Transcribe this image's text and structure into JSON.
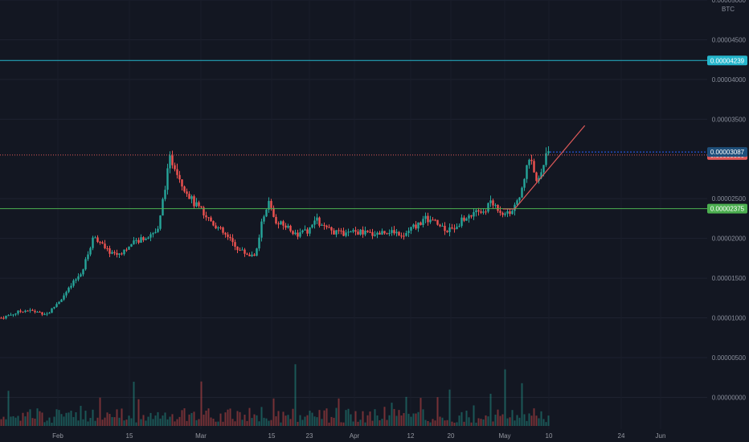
{
  "chart_data": {
    "type": "candlestick",
    "currency": "BTC",
    "ylim": [
      -4e-07,
      5e-06
    ],
    "y_ticks": [
      "0.00005000",
      "0.00004500",
      "0.00004000",
      "0.00003500",
      "0.00002500",
      "0.00002000",
      "0.00001500",
      "0.00001000",
      "0.00000500",
      "0.00000000"
    ],
    "x_ticks": [
      "Feb",
      "15",
      "Mar",
      "15",
      "23",
      "Apr",
      "12",
      "20",
      "May",
      "10",
      "24",
      "Jun"
    ],
    "last_price": {
      "label": "0.00003087",
      "value": 3.087e-06,
      "color": "#1e4f7a"
    },
    "horizontal_lines": [
      {
        "label": "0.00004239",
        "value": 4.239e-06,
        "color": "#26b6cc",
        "style": "solid"
      },
      {
        "label": "0.00003050",
        "value": 3.05e-06,
        "color": "#e05a5a",
        "style": "dotted"
      },
      {
        "label": "0.00002375",
        "value": 2.375e-06,
        "color": "#4caf50",
        "style": "solid"
      }
    ],
    "price_path": [
      [
        0,
        1e-06
      ],
      [
        4,
        1.1e-06
      ],
      [
        8,
        1.05e-06
      ],
      [
        11,
        1.3e-06
      ],
      [
        14,
        1.6e-06
      ],
      [
        16,
        2.05e-06
      ],
      [
        18,
        1.85e-06
      ],
      [
        20,
        1.8e-06
      ],
      [
        22,
        1.9e-06
      ],
      [
        24,
        2e-06
      ],
      [
        27,
        2.1e-06
      ],
      [
        28,
        2.6e-06
      ],
      [
        29,
        3e-06
      ],
      [
        30,
        2.9e-06
      ],
      [
        31,
        2.7e-06
      ],
      [
        33,
        2.45e-06
      ],
      [
        35,
        2.3e-06
      ],
      [
        37,
        2.15e-06
      ],
      [
        39,
        2e-06
      ],
      [
        41,
        1.85e-06
      ],
      [
        43,
        1.78e-06
      ],
      [
        44,
        1.85e-06
      ],
      [
        45,
        2.3e-06
      ],
      [
        46,
        2.45e-06
      ],
      [
        47,
        2.2e-06
      ],
      [
        49,
        2.15e-06
      ],
      [
        51,
        2.05e-06
      ],
      [
        53,
        2.1e-06
      ],
      [
        54,
        2.25e-06
      ],
      [
        55,
        2.15e-06
      ],
      [
        57,
        2.08e-06
      ],
      [
        59,
        2.05e-06
      ],
      [
        61,
        2.08e-06
      ],
      [
        63,
        2.06e-06
      ],
      [
        65,
        2.07e-06
      ],
      [
        67,
        2.1e-06
      ],
      [
        69,
        2.05e-06
      ],
      [
        71,
        2.15e-06
      ],
      [
        73,
        2.25e-06
      ],
      [
        75,
        2.18e-06
      ],
      [
        77,
        2.1e-06
      ],
      [
        79,
        2.22e-06
      ],
      [
        81,
        2.3e-06
      ],
      [
        83,
        2.35e-06
      ],
      [
        84,
        2.45e-06
      ],
      [
        85,
        2.4e-06
      ],
      [
        86,
        2.33e-06
      ],
      [
        88,
        2.35e-06
      ],
      [
        89,
        2.5e-06
      ],
      [
        90,
        2.85e-06
      ],
      [
        91,
        2.98e-06
      ],
      [
        92,
        2.7e-06
      ],
      [
        93,
        2.95e-06
      ],
      [
        94,
        3.1e-06
      ]
    ],
    "trend_line": {
      "from": [
        88,
        2.37e-06
      ],
      "to": [
        100,
        3.42e-06
      ],
      "color": "#e05a5a"
    },
    "volume_max": 9.5e-07
  }
}
